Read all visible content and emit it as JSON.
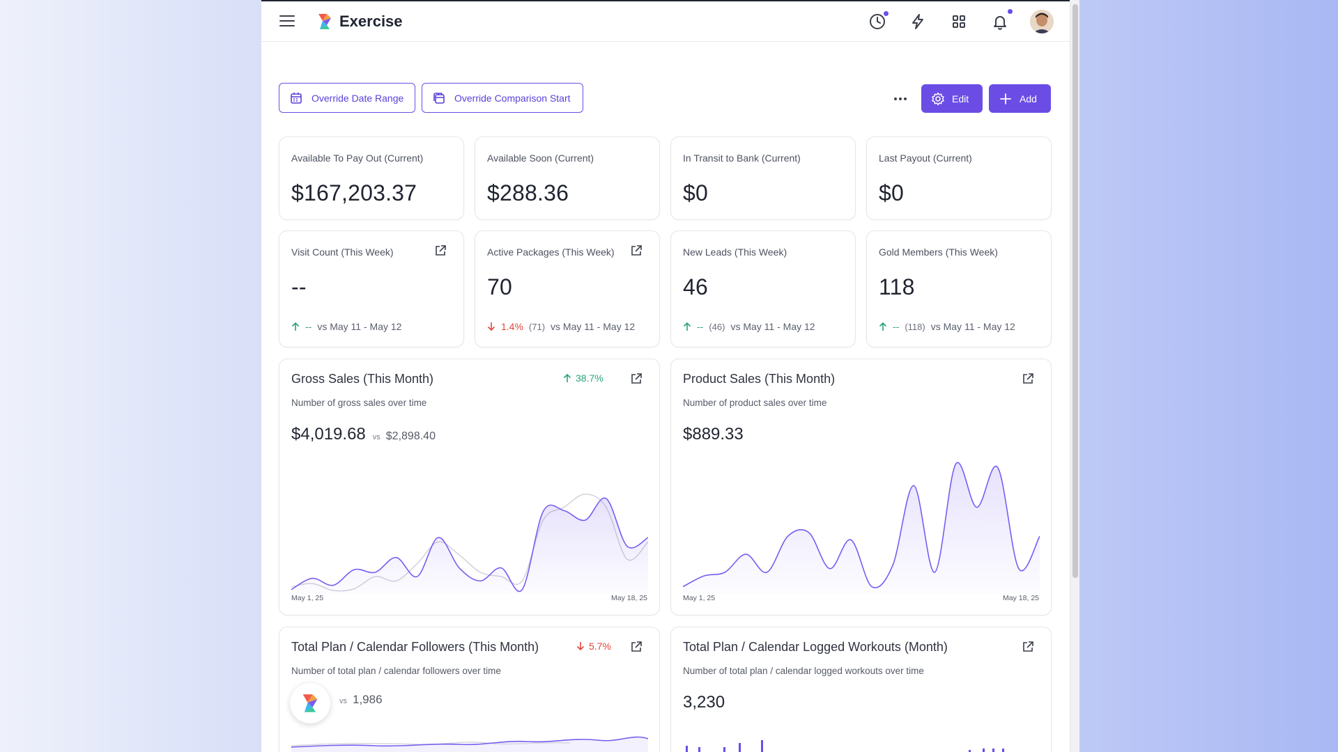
{
  "app": {
    "title": "Exercise"
  },
  "toolbar": {
    "override_date_range": "Override Date Range",
    "override_comparison_start": "Override Comparison Start",
    "edit_label": "Edit",
    "add_label": "Add"
  },
  "colors": {
    "accent": "#6b4de6",
    "up": "#27a17a",
    "down": "#e0463c"
  },
  "stats_current": [
    {
      "label": "Available To Pay Out (Current)",
      "value": "$167,203.37"
    },
    {
      "label": "Available Soon (Current)",
      "value": "$288.36"
    },
    {
      "label": "In Transit to Bank (Current)",
      "value": "$0"
    },
    {
      "label": "Last Payout (Current)",
      "value": "$0"
    }
  ],
  "stats_week": [
    {
      "label": "Visit Count (This Week)",
      "value": "--",
      "delta": "--",
      "direction": "up",
      "previous": "",
      "vs": "vs May 11 - May 12",
      "external": true
    },
    {
      "label": "Active Packages (This Week)",
      "value": "70",
      "delta": "1.4%",
      "direction": "down",
      "previous": "(71)",
      "vs": "vs May 11 - May 12",
      "external": true
    },
    {
      "label": "New Leads (This Week)",
      "value": "46",
      "delta": "--",
      "direction": "up",
      "previous": "(46)",
      "vs": "vs May 11 - May 12",
      "external": false
    },
    {
      "label": "Gold Members (This Week)",
      "value": "118",
      "delta": "--",
      "direction": "up",
      "previous": "(118)",
      "vs": "vs May 11 - May 12",
      "external": false
    }
  ],
  "charts": {
    "gross_sales": {
      "title": "Gross Sales (This Month)",
      "subtitle": "Number of gross sales over time",
      "value": "$4,019.68",
      "vs": "vs",
      "compare": "$2,898.40",
      "badge": "38.7%",
      "badge_direction": "up",
      "x_start": "May 1, 25",
      "x_end": "May 18, 25"
    },
    "product_sales": {
      "title": "Product Sales (This Month)",
      "subtitle": "Number of product sales over time",
      "value": "$889.33",
      "x_start": "May 1, 25",
      "x_end": "May 18, 25"
    },
    "followers": {
      "title": "Total Plan / Calendar Followers (This Month)",
      "subtitle": "Number of total plan / calendar followers over time",
      "vs": "vs",
      "compare": "1,986",
      "badge": "5.7%",
      "badge_direction": "down"
    },
    "logged_workouts": {
      "title": "Total Plan / Calendar Logged Workouts (Month)",
      "subtitle": "Number of total plan / calendar logged workouts over time",
      "value": "3,230"
    }
  },
  "chart_data": [
    {
      "type": "area",
      "x": [
        "May 1, 25",
        "",
        "",
        "",
        "",
        "",
        "",
        "",
        "",
        "",
        "",
        "",
        "",
        "",
        "",
        "",
        "",
        "May 18, 25"
      ],
      "series": [
        {
          "values": [
            5,
            18,
            10,
            28,
            25,
            42,
            20,
            65,
            30,
            15,
            30,
            5,
            95,
            96,
            85,
            110,
            55,
            65
          ]
        },
        {
          "values": [
            8,
            12,
            4,
            6,
            20,
            15,
            35,
            60,
            45,
            25,
            20,
            15,
            85,
            100,
            115,
            100,
            40,
            60
          ]
        }
      ],
      "ylim": [
        0,
        130
      ]
    },
    {
      "type": "area",
      "x": [
        "May 1, 25",
        "",
        "",
        "",
        "",
        "",
        "",
        "",
        "",
        "",
        "",
        "",
        "",
        "",
        "",
        "",
        "",
        "May 18, 25"
      ],
      "series": [
        {
          "values": [
            10,
            25,
            30,
            55,
            30,
            80,
            85,
            35,
            75,
            10,
            40,
            150,
            30,
            180,
            120,
            175,
            35,
            80
          ]
        }
      ],
      "ylim": [
        0,
        190
      ]
    }
  ]
}
